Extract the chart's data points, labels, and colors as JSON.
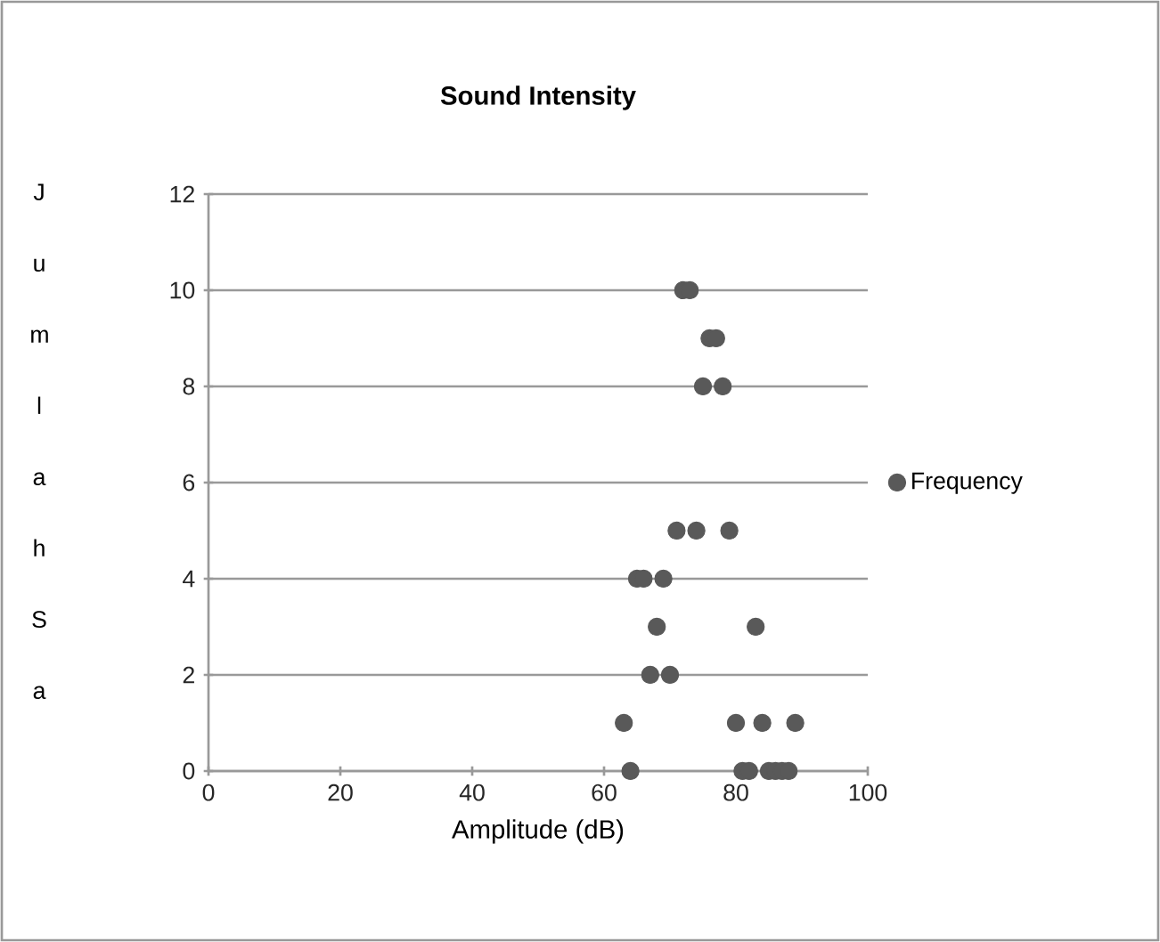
{
  "chart_data": {
    "type": "scatter",
    "title": "Sound Intensity",
    "xlabel": "Amplitude (dB)",
    "ylabel": "J u m l a h S a",
    "series": [
      {
        "name": "Frequency",
        "color": "#595959",
        "x": [
          72,
          73,
          76,
          77,
          75,
          78,
          71,
          74,
          79,
          65,
          66,
          69,
          68,
          83,
          67,
          70,
          63,
          80,
          84,
          89,
          64,
          81,
          82,
          85,
          86,
          87,
          88
        ],
        "values": [
          10,
          10,
          9,
          9,
          8,
          8,
          5,
          5,
          5,
          4,
          4,
          4,
          3,
          3,
          2,
          2,
          1,
          1,
          1,
          1,
          0,
          0,
          0,
          0,
          0,
          0,
          0
        ]
      }
    ],
    "xlim": [
      0,
      100
    ],
    "xticks": [
      0,
      20,
      40,
      60,
      80,
      100
    ],
    "ylim": [
      0,
      12
    ],
    "yticks": [
      0,
      2,
      4,
      6,
      8,
      10,
      12
    ],
    "grid": "y",
    "legend": "right",
    "marker": "circle"
  }
}
